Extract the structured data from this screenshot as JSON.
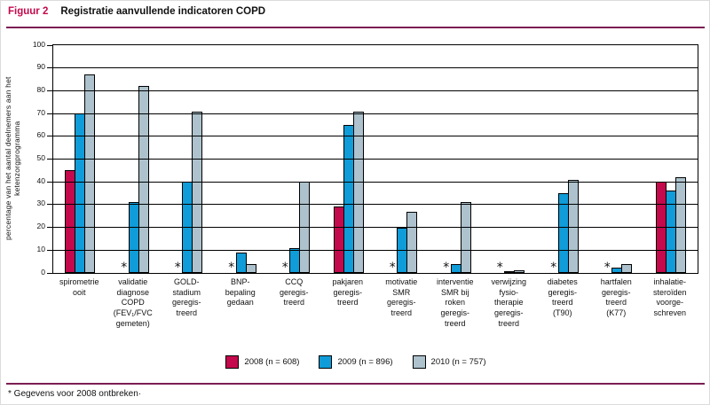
{
  "header": {
    "figure_label": "Figuur 2",
    "title": "Registratie aanvullende indicatoren COPD"
  },
  "chart_data": {
    "type": "bar",
    "title": "Registratie aanvullende indicatoren COPD",
    "xlabel": "",
    "ylabel": "percentage van het aantal deelnemers aan het ketenzorgprogramma",
    "ylim": [
      0,
      100
    ],
    "ytick_step": 10,
    "yticks": [
      0,
      10,
      20,
      30,
      40,
      50,
      60,
      70,
      80,
      90,
      100
    ],
    "grid": true,
    "legend_position": "bottom-center",
    "categories": [
      "spirometrie\nooit",
      "validatie\ndiagnose\nCOPD\n(FEV₁/FVC\ngemeten)",
      "GOLD-\nstadium\ngeregis-\ntreerd",
      "BNP-\nbepaling\ngedaan",
      "CCQ\ngeregis-\ntreerd",
      "pakjaren\ngeregis-\ntreerd",
      "motivatie\nSMR\ngeregis-\ntreerd",
      "interventie\nSMR bij\nroken\ngeregis-\ntreerd",
      "verwijzing\nfysio-\ntherapie\ngeregis-\ntreerd",
      "diabetes\ngeregis-\ntreerd\n(T90)",
      "hartfalen\ngeregis-\ntreerd\n(K77)",
      "inhalatie-\nsteroïden\nvoorge-\nschreven"
    ],
    "series": [
      {
        "name": "2008 (n = 608)",
        "color": "#c4094c",
        "values": [
          45,
          null,
          null,
          null,
          null,
          29,
          null,
          null,
          null,
          null,
          null,
          40
        ]
      },
      {
        "name": "2009 (n = 896)",
        "color": "#0f9cd8",
        "values": [
          70,
          31,
          40,
          9,
          11,
          65,
          20,
          4,
          0.5,
          35,
          2.5,
          36
        ]
      },
      {
        "name": "2010 (n = 757)",
        "color": "#adc2cd",
        "values": [
          87,
          82,
          71,
          4,
          40,
          71,
          27,
          31,
          1,
          41,
          4,
          42
        ]
      }
    ],
    "missing_marker": "*",
    "footnote": "* Gegevens voor 2008 ontbreken·"
  },
  "colors": {
    "accent_rule": "#7b1e54",
    "figure_label": "#c4094c",
    "axis": "#000000",
    "background": "#ffffff"
  }
}
